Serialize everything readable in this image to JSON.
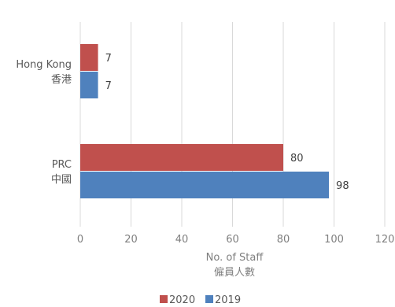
{
  "chart_data": {
    "type": "bar",
    "orientation": "horizontal",
    "categories": [
      {
        "line1": "Hong Kong",
        "line2": "香港"
      },
      {
        "line1": "PRC",
        "line2": "中國"
      }
    ],
    "series": [
      {
        "name": "2020",
        "color": "#c0504d",
        "values": [
          7,
          80
        ]
      },
      {
        "name": "2019",
        "color": "#4f81bd",
        "values": [
          7,
          98
        ]
      }
    ],
    "xlabel": {
      "line1": "No. of Staff",
      "line2": "僱員人數"
    },
    "xlim": [
      0,
      120
    ],
    "xticks": [
      "0",
      "20",
      "40",
      "60",
      "80",
      "100",
      "120"
    ],
    "grid": "vertical",
    "legend": "bottom",
    "data_labels": true
  }
}
